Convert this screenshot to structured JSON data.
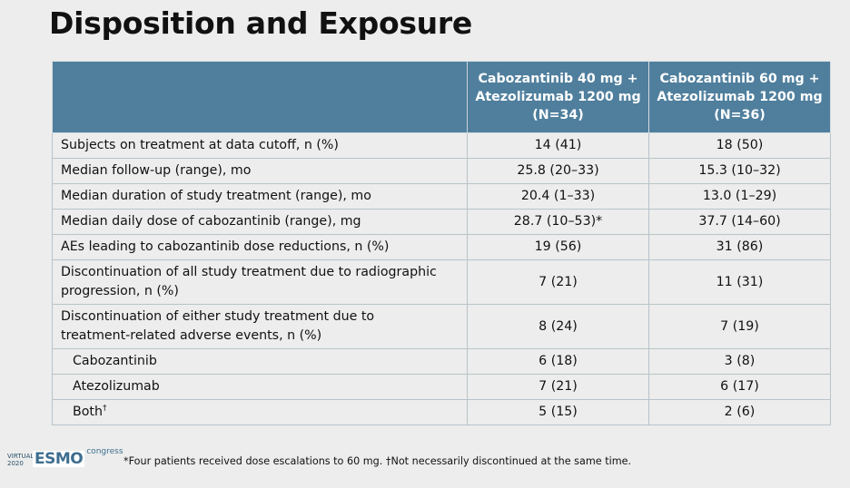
{
  "title": "Disposition and Exposure",
  "table": {
    "headers": [
      "",
      "Cabozantinib 40 mg + Atezolizumab 1200 mg (N=34)",
      "Cabozantinib 60 mg + Atezolizumab 1200 mg (N=36)"
    ],
    "header_lines": [
      [
        "Cabozantinib 40 mg +",
        "Atezolizumab 1200 mg",
        "(N=34)"
      ],
      [
        "Cabozantinib 60 mg +",
        "Atezolizumab 1200 mg",
        "(N=36)"
      ]
    ],
    "rows": [
      {
        "label": "Subjects on treatment at data cutoff, n (%)",
        "c40": "14 (41)",
        "c60": "18 (50)"
      },
      {
        "label": "Median follow-up (range), mo",
        "c40": "25.8 (20–33)",
        "c60": "15.3 (10–32)"
      },
      {
        "label": "Median duration of study treatment (range), mo",
        "c40": "20.4 (1–33)",
        "c60": "13.0 (1–29)"
      },
      {
        "label": "Median daily dose of cabozantinib (range), mg",
        "c40": "28.7 (10–53)*",
        "c60": "37.7 (14–60)"
      },
      {
        "label": "AEs leading to cabozantinib dose reductions, n (%)",
        "c40": "19 (56)",
        "c60": "31 (86)"
      },
      {
        "label_lines": [
          "Discontinuation of all study treatment due to radiographic",
          "progression, n (%)"
        ],
        "c40": "7 (21)",
        "c60": "11 (31)"
      },
      {
        "label_lines": [
          "Discontinuation of either study treatment due to",
          "treatment-related adverse events, n (%)"
        ],
        "c40": "8 (24)",
        "c60": "7 (19)"
      },
      {
        "label": "Cabozantinib",
        "c40": "6 (18)",
        "c60": "3 (8)"
      },
      {
        "label": "Atezolizumab",
        "c40": "7 (21)",
        "c60": "6 (17)"
      },
      {
        "label": "Both",
        "label_sup": "†",
        "c40": "5 (15)",
        "c60": "2 (6)"
      }
    ]
  },
  "footnote": "*Four patients received dose escalations to 60 mg. †Not necessarily discontinued at the same time.",
  "logo": {
    "virtual": "VIRTUAL",
    "year": "2020",
    "brand": "ESMO",
    "congress": "congress"
  },
  "colors": {
    "header_bg": "#4f7f9d",
    "page_bg": "#ecedec",
    "grid": "#b9c3ca"
  }
}
